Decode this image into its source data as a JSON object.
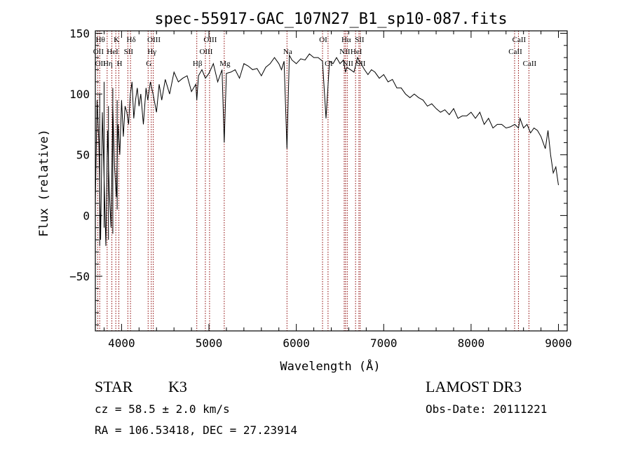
{
  "chart_data": {
    "type": "line",
    "title": "spec-55917-GAC_107N27_B1_sp10-087.fits",
    "xlabel": "Wavelength (Å)",
    "ylabel": "Flux (relative)",
    "xlim": [
      3700,
      9100
    ],
    "ylim": [
      -95,
      152
    ],
    "x_ticks": [
      4000,
      5000,
      6000,
      7000,
      8000,
      9000
    ],
    "x_tick_labels": [
      "4000",
      "5000",
      "6000",
      "7000",
      "8000",
      "9000"
    ],
    "y_ticks": [
      -50,
      0,
      50,
      100,
      150
    ],
    "y_tick_labels": [
      "−50",
      "0",
      "50",
      "100",
      "150"
    ],
    "grid": false,
    "line_color": "#000000",
    "marker_color": "#8b0000",
    "series": [
      {
        "x": [
          3700,
          3720,
          3740,
          3760,
          3780,
          3800,
          3820,
          3840,
          3860,
          3880,
          3900,
          3920,
          3940,
          3960,
          3980,
          4000,
          4020,
          4040,
          4060,
          4080,
          4100,
          4120,
          4140,
          4160,
          4180,
          4200,
          4220,
          4250,
          4280,
          4300,
          4330,
          4360,
          4400,
          4430,
          4460,
          4500,
          4550,
          4600,
          4650,
          4700,
          4750,
          4800,
          4850,
          4861,
          4880,
          4920,
          4960,
          5000,
          5050,
          5100,
          5150,
          5175,
          5200,
          5250,
          5300,
          5350,
          5400,
          5450,
          5500,
          5550,
          5600,
          5650,
          5700,
          5750,
          5800,
          5830,
          5860,
          5893,
          5920,
          5950,
          6000,
          6050,
          6100,
          6150,
          6200,
          6250,
          6300,
          6340,
          6380,
          6420,
          6460,
          6500,
          6540,
          6563,
          6580,
          6620,
          6660,
          6700,
          6740,
          6780,
          6820,
          6860,
          6900,
          6950,
          7000,
          7050,
          7100,
          7150,
          7200,
          7250,
          7300,
          7350,
          7400,
          7450,
          7500,
          7550,
          7600,
          7650,
          7700,
          7750,
          7800,
          7850,
          7900,
          7950,
          8000,
          8050,
          8100,
          8150,
          8200,
          8250,
          8300,
          8350,
          8400,
          8450,
          8500,
          8542,
          8560,
          8600,
          8640,
          8680,
          8720,
          8760,
          8800,
          8850,
          8880,
          8910,
          8940,
          8970,
          9000
        ],
        "y": [
          10,
          95,
          60,
          -20,
          85,
          30,
          -25,
          70,
          20,
          -10,
          90,
          40,
          15,
          75,
          50,
          95,
          65,
          90,
          85,
          75,
          100,
          110,
          80,
          95,
          105,
          90,
          100,
          75,
          105,
          95,
          110,
          100,
          85,
          108,
          95,
          112,
          100,
          118,
          110,
          113,
          115,
          102,
          108,
          95,
          115,
          120,
          113,
          117,
          125,
          110,
          120,
          60,
          117,
          118,
          120,
          113,
          125,
          123,
          120,
          121,
          115,
          122,
          125,
          130,
          125,
          120,
          127,
          55,
          132,
          128,
          125,
          129,
          128,
          133,
          130,
          130,
          127,
          80,
          127,
          125,
          130,
          125,
          128,
          118,
          122,
          120,
          118,
          130,
          125,
          120,
          116,
          120,
          118,
          113,
          116,
          110,
          112,
          105,
          105,
          100,
          97,
          100,
          97,
          95,
          90,
          92,
          88,
          85,
          87,
          83,
          88,
          80,
          82,
          82,
          85,
          80,
          85,
          75,
          80,
          72,
          75,
          75,
          72,
          73,
          75,
          72,
          80,
          72,
          75,
          68,
          72,
          70,
          65,
          55,
          70,
          50,
          35,
          40,
          25
        ],
        "range_markers": [
          {
            "x": 3750,
            "low": -25,
            "high": 100
          },
          {
            "x": 3800,
            "low": -10,
            "high": 110
          },
          {
            "x": 3850,
            "low": -20,
            "high": 90
          },
          {
            "x": 3900,
            "low": -15,
            "high": 105
          },
          {
            "x": 3950,
            "low": 5,
            "high": 95
          }
        ]
      }
    ],
    "line_markers": [
      {
        "x": 3727,
        "labels": [
          "OII"
        ],
        "rows": [
          1
        ]
      },
      {
        "x": 3750,
        "labels": [
          "Hθ",
          "OII"
        ],
        "rows": [
          0,
          2
        ]
      },
      {
        "x": 3835,
        "labels": [
          "Hη"
        ],
        "rows": [
          2
        ]
      },
      {
        "x": 3889,
        "labels": [
          "HeI"
        ],
        "rows": [
          1
        ]
      },
      {
        "x": 3934,
        "labels": [
          "K"
        ],
        "rows": [
          0
        ]
      },
      {
        "x": 3969,
        "labels": [
          "H"
        ],
        "rows": [
          2
        ]
      },
      {
        "x": 4072,
        "labels": [
          "SII"
        ],
        "rows": [
          1
        ]
      },
      {
        "x": 4102,
        "labels": [
          "Hδ"
        ],
        "rows": [
          0
        ]
      },
      {
        "x": 4304,
        "labels": [
          "G"
        ],
        "rows": [
          2
        ]
      },
      {
        "x": 4340,
        "labels": [
          "Hγ"
        ],
        "rows": [
          1
        ]
      },
      {
        "x": 4363,
        "labels": [
          "OIII"
        ],
        "rows": [
          0
        ]
      },
      {
        "x": 4861,
        "labels": [
          "Hβ"
        ],
        "rows": [
          2
        ]
      },
      {
        "x": 4959,
        "labels": [
          "OIII"
        ],
        "rows": [
          1
        ]
      },
      {
        "x": 5007,
        "labels": [
          "OIII"
        ],
        "rows": [
          0
        ]
      },
      {
        "x": 5175,
        "labels": [
          "Mg"
        ],
        "rows": [
          2
        ]
      },
      {
        "x": 5893,
        "labels": [
          "Na"
        ],
        "rows": [
          1
        ]
      },
      {
        "x": 6300,
        "labels": [
          "OI"
        ],
        "rows": [
          0
        ]
      },
      {
        "x": 6363,
        "labels": [
          "OI"
        ],
        "rows": [
          2
        ]
      },
      {
        "x": 6548,
        "labels": [
          "NII"
        ],
        "rows": [
          1
        ]
      },
      {
        "x": 6563,
        "labels": [
          "Hα"
        ],
        "rows": [
          0
        ]
      },
      {
        "x": 6583,
        "labels": [
          "NII"
        ],
        "rows": [
          2
        ]
      },
      {
        "x": 6678,
        "labels": [
          "HeI"
        ],
        "rows": [
          1
        ]
      },
      {
        "x": 6716,
        "labels": [
          "SII"
        ],
        "rows": [
          0
        ]
      },
      {
        "x": 6731,
        "labels": [
          "SII"
        ],
        "rows": [
          2
        ]
      },
      {
        "x": 8498,
        "labels": [
          "CaII"
        ],
        "rows": [
          1
        ]
      },
      {
        "x": 8542,
        "labels": [
          "CaII"
        ],
        "rows": [
          0
        ]
      },
      {
        "x": 8662,
        "labels": [
          "CaII"
        ],
        "rows": [
          2
        ]
      }
    ]
  },
  "info": {
    "class": "STAR",
    "subclass": "K3",
    "survey": "LAMOST DR3",
    "cz": "cz = 58.5 ± 2.0 km/s",
    "obs_date": "Obs-Date: 20111221",
    "coords": "RA = 106.53418, DEC =  27.23914"
  }
}
